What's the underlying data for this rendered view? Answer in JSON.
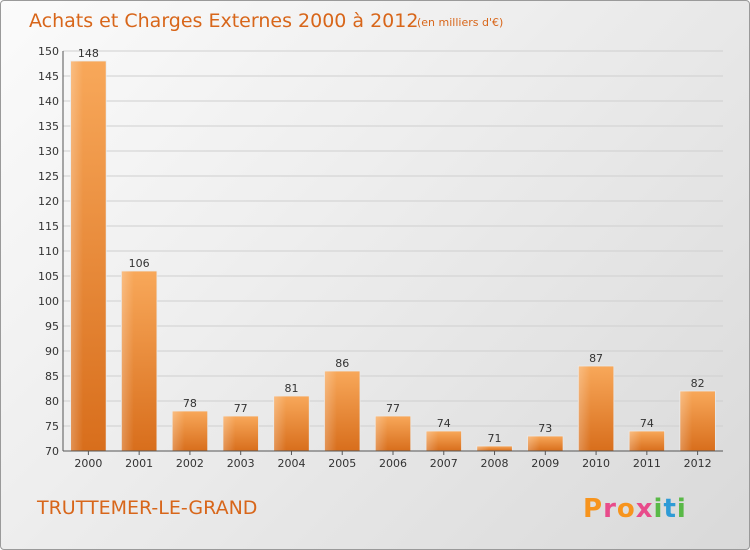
{
  "chart_data": {
    "type": "bar",
    "title": "Achats et Charges Externes 2000 à 2012",
    "unit_note": "(en milliers d'€)",
    "categories": [
      "2000",
      "2001",
      "2002",
      "2003",
      "2004",
      "2005",
      "2006",
      "2007",
      "2008",
      "2009",
      "2010",
      "2011",
      "2012"
    ],
    "values": [
      148,
      106,
      78,
      77,
      81,
      86,
      77,
      74,
      71,
      73,
      87,
      74,
      82
    ],
    "ylim": [
      70,
      150
    ],
    "yticks": [
      70,
      75,
      80,
      85,
      90,
      95,
      100,
      105,
      110,
      115,
      120,
      125,
      130,
      135,
      140,
      145,
      150
    ],
    "grid": true,
    "bar_color": "#f0902e",
    "place": "TRUTTEMER-LE-GRAND"
  },
  "logo": {
    "letters": [
      "P",
      "r",
      "o",
      "x",
      "i",
      "t",
      "i"
    ],
    "colors": [
      "#f7941d",
      "#e84c8b",
      "#f7941d",
      "#e84c8b",
      "#59b947",
      "#2e9bd6",
      "#59b947"
    ]
  }
}
